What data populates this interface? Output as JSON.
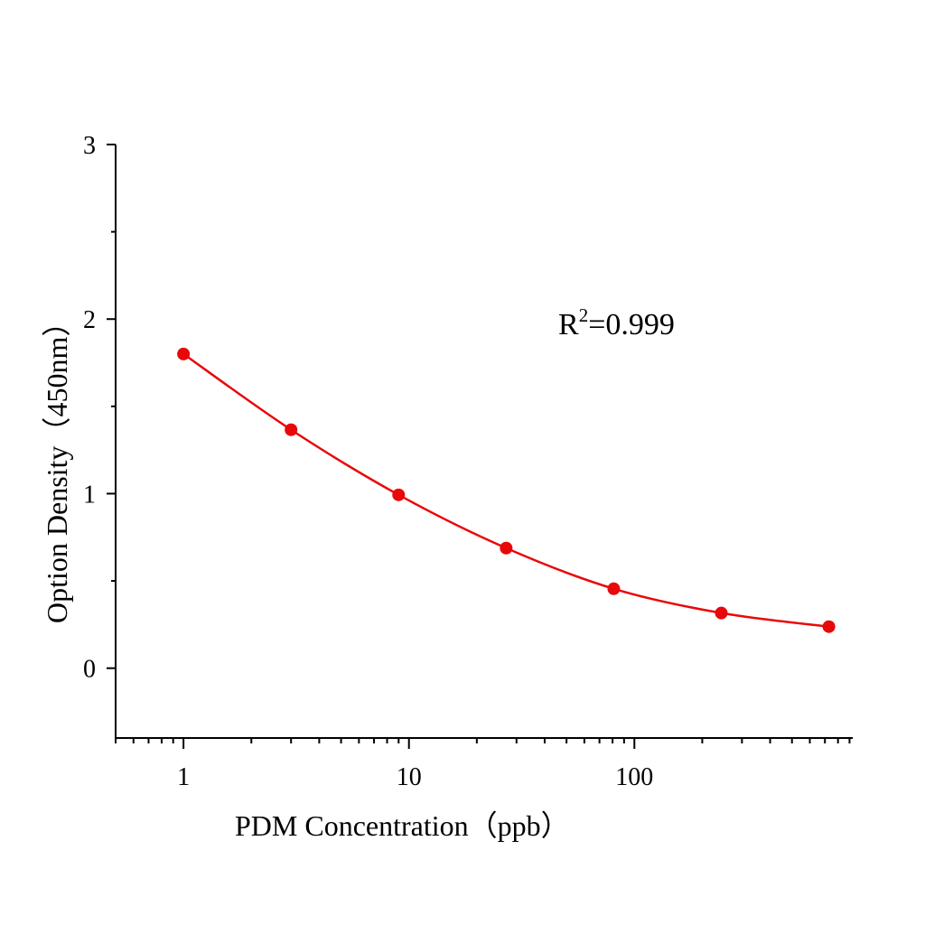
{
  "chart_data": {
    "type": "line",
    "title": "",
    "xlabel": "PDM Concentration（ppb）",
    "ylabel": "Option Density（450nm）",
    "x_scale": "log",
    "xlim": [
      0.5,
      930
    ],
    "ylim": [
      -0.4,
      3
    ],
    "x_ticks": [
      1,
      10,
      100
    ],
    "x_tick_labels": [
      "1",
      "10",
      "100"
    ],
    "y_ticks": [
      0,
      1,
      2,
      3
    ],
    "y_tick_labels": [
      "0",
      "1",
      "2",
      "3"
    ],
    "grid": false,
    "annotation": {
      "base": "R",
      "sup": "2",
      "rest": "=0.999"
    },
    "series": [
      {
        "x": [
          1,
          3,
          9,
          27,
          81,
          243,
          729
        ],
        "y": [
          1.8,
          1.366,
          0.993,
          0.688,
          0.455,
          0.316,
          0.238
        ],
        "color": "#e8080a",
        "marker": "circle",
        "fit_line": true
      }
    ]
  }
}
